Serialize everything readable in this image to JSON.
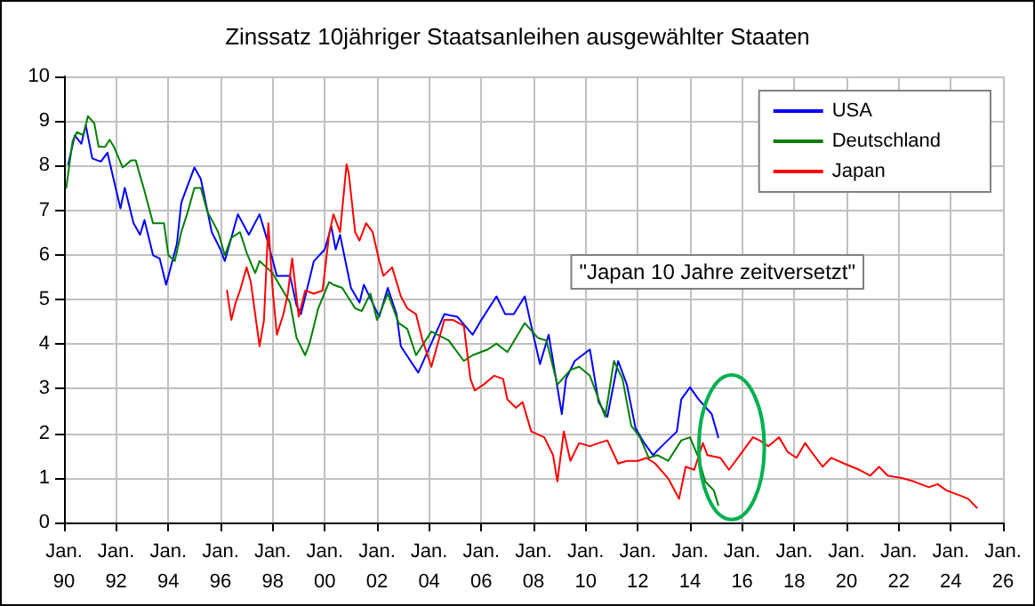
{
  "chart_data": {
    "type": "line",
    "title": "Zinssatz 10jähriger Staatsanleihen ausgewählter Staaten",
    "xlim": [
      "1990-01",
      "2026-01"
    ],
    "xticks": [
      {
        "value": "1990-01",
        "label": "Jan.\n90"
      },
      {
        "value": "1992-01",
        "label": "Jan.\n92"
      },
      {
        "value": "1994-01",
        "label": "Jan.\n94"
      },
      {
        "value": "1996-01",
        "label": "Jan.\n96"
      },
      {
        "value": "1998-01",
        "label": "Jan.\n98"
      },
      {
        "value": "2000-01",
        "label": "Jan.\n00"
      },
      {
        "value": "2002-01",
        "label": "Jan.\n02"
      },
      {
        "value": "2004-01",
        "label": "Jan.\n04"
      },
      {
        "value": "2006-01",
        "label": "Jan.\n06"
      },
      {
        "value": "2008-01",
        "label": "Jan.\n08"
      },
      {
        "value": "2010-01",
        "label": "Jan.\n10"
      },
      {
        "value": "2012-01",
        "label": "Jan.\n12"
      },
      {
        "value": "2014-01",
        "label": "Jan.\n14"
      },
      {
        "value": "2016-01",
        "label": "Jan.\n16"
      },
      {
        "value": "2018-01",
        "label": "Jan.\n18"
      },
      {
        "value": "2020-01",
        "label": "Jan.\n20"
      },
      {
        "value": "2022-01",
        "label": "Jan.\n22"
      },
      {
        "value": "2024-01",
        "label": "Jan.\n24"
      },
      {
        "value": "2026-01",
        "label": "Jan.\n26"
      }
    ],
    "ylim": [
      0,
      10
    ],
    "yticks": [
      0,
      1,
      2,
      3,
      4,
      5,
      6,
      7,
      8,
      9,
      10
    ],
    "grid": true,
    "legend": "top right",
    "marker": "none",
    "line_style": "solid",
    "annotations": [
      "\"Japan 10 Jahre zeitversetzt\""
    ],
    "series": [
      {
        "name": "USA",
        "color": "#0000ff",
        "x": [
          "1990-03",
          "1990-06",
          "1990-09",
          "1990-11",
          "1991-02",
          "1991-06",
          "1991-09",
          "1992-03",
          "1992-05",
          "1992-09",
          "1992-12",
          "1993-02",
          "1993-06",
          "1993-09",
          "1993-12",
          "1994-05",
          "1994-07",
          "1995-01",
          "1995-04",
          "1995-09",
          "1996-01",
          "1996-03",
          "1996-09",
          "1997-02",
          "1997-07",
          "1997-11",
          "1998-03",
          "1998-09",
          "1998-12",
          "1999-02",
          "1999-08",
          "2000-01",
          "2000-04",
          "2000-06",
          "2000-08",
          "2001-01",
          "2001-05",
          "2001-07",
          "2002-02",
          "2002-06",
          "2002-10",
          "2002-12",
          "2003-08",
          "2004-08",
          "2005-02",
          "2005-09",
          "2006-01",
          "2006-08",
          "2006-12",
          "2007-04",
          "2007-09",
          "2007-12",
          "2008-04",
          "2008-08",
          "2009-02",
          "2009-04",
          "2009-08",
          "2010-03",
          "2010-07",
          "2010-11",
          "2011-04",
          "2011-08",
          "2011-12",
          "2012-04",
          "2012-08",
          "2012-12",
          "2013-07",
          "2013-09",
          "2014-01",
          "2014-05",
          "2014-11",
          "2015-02"
        ],
        "values": [
          8.03,
          8.68,
          8.49,
          8.91,
          8.16,
          8.09,
          8.29,
          7.04,
          7.5,
          6.71,
          6.45,
          6.78,
          5.99,
          5.92,
          5.33,
          6.25,
          7.17,
          7.96,
          7.7,
          6.51,
          6.12,
          5.86,
          6.91,
          6.45,
          6.91,
          6.25,
          5.53,
          5.53,
          4.87,
          4.67,
          5.86,
          6.12,
          6.64,
          6.12,
          6.45,
          5.26,
          4.93,
          5.33,
          4.61,
          5.26,
          4.67,
          3.95,
          3.36,
          4.67,
          4.61,
          4.21,
          4.54,
          5.07,
          4.67,
          4.67,
          5.07,
          4.41,
          3.55,
          4.21,
          2.43,
          3.22,
          3.62,
          3.88,
          2.7,
          2.37,
          3.62,
          3.09,
          2.11,
          1.78,
          1.51,
          1.71,
          2.04,
          2.76,
          3.03,
          2.76,
          2.43,
          1.91
        ]
      },
      {
        "name": "Deutschland",
        "color": "#008000",
        "x": [
          "1990-02",
          "1990-05",
          "1990-07",
          "1990-10",
          "1990-12",
          "1991-03",
          "1991-05",
          "1991-08",
          "1991-10",
          "1991-12",
          "1992-04",
          "1992-08",
          "1992-10",
          "1993-02",
          "1993-06",
          "1993-11",
          "1994-01",
          "1994-04",
          "1994-07",
          "1994-10",
          "1995-01",
          "1995-04",
          "1995-07",
          "1995-12",
          "1996-03",
          "1996-06",
          "1996-10",
          "1997-01",
          "1997-05",
          "1997-07",
          "1998-01",
          "1998-05",
          "1998-09",
          "1998-12",
          "1999-04",
          "1999-06",
          "1999-10",
          "2000-03",
          "2000-05",
          "2000-09",
          "2001-03",
          "2001-06",
          "2001-10",
          "2002-01",
          "2002-06",
          "2002-11",
          "2003-03",
          "2003-07",
          "2004-02",
          "2004-10",
          "2005-05",
          "2005-09",
          "2006-04",
          "2006-08",
          "2007-01",
          "2007-09",
          "2008-03",
          "2008-07",
          "2008-12",
          "2009-06",
          "2009-10",
          "2010-03",
          "2010-10",
          "2011-02",
          "2011-06",
          "2011-10",
          "2012-02",
          "2012-06",
          "2012-10",
          "2013-03",
          "2013-09",
          "2014-01",
          "2014-05",
          "2014-08",
          "2014-12",
          "2015-02"
        ],
        "values": [
          7.5,
          8.55,
          8.75,
          8.68,
          9.11,
          8.95,
          8.42,
          8.42,
          8.58,
          8.42,
          7.96,
          8.12,
          8.12,
          7.43,
          6.71,
          6.71,
          5.99,
          5.86,
          6.51,
          6.97,
          7.5,
          7.5,
          6.97,
          6.51,
          5.99,
          6.38,
          6.51,
          6.05,
          5.59,
          5.86,
          5.59,
          5.26,
          4.93,
          4.14,
          3.75,
          4.01,
          4.8,
          5.39,
          5.33,
          5.26,
          4.8,
          4.74,
          5.13,
          4.54,
          5.13,
          4.47,
          4.34,
          3.75,
          4.28,
          4.08,
          3.62,
          3.75,
          3.88,
          4.01,
          3.82,
          4.47,
          4.14,
          4.08,
          3.09,
          3.42,
          3.49,
          3.29,
          2.37,
          3.62,
          3.22,
          2.17,
          1.91,
          1.45,
          1.51,
          1.38,
          1.84,
          1.91,
          1.45,
          0.92,
          0.72,
          0.39
        ]
      },
      {
        "name": "Japan",
        "color": "#ff0000",
        "x": [
          "1996-04",
          "1996-06",
          "1996-08",
          "1996-10",
          "1997-01",
          "1997-03",
          "1997-05",
          "1997-07",
          "1997-09",
          "1997-11",
          "1998-01",
          "1998-03",
          "1998-06",
          "1998-08",
          "1998-10",
          "1999-01",
          "1999-04",
          "1999-08",
          "1999-12",
          "2000-03",
          "2000-05",
          "2000-08",
          "2000-11",
          "2000-12",
          "2001-03",
          "2001-05",
          "2001-08",
          "2001-11",
          "2002-02",
          "2002-04",
          "2002-08",
          "2002-12",
          "2003-03",
          "2003-07",
          "2003-10",
          "2004-02",
          "2004-08",
          "2004-12",
          "2005-05",
          "2005-08",
          "2005-10",
          "2006-02",
          "2006-07",
          "2006-11",
          "2007-01",
          "2007-05",
          "2007-08",
          "2007-12",
          "2008-06",
          "2008-10",
          "2008-12",
          "2009-03",
          "2009-06",
          "2009-10",
          "2010-03",
          "2010-07",
          "2010-11",
          "2011-04",
          "2011-08",
          "2012-01",
          "2012-05",
          "2012-09",
          "2013-03",
          "2013-08",
          "2013-11",
          "2014-03",
          "2014-07",
          "2014-09",
          "2015-03",
          "2015-07",
          "2015-12",
          "2016-06",
          "2016-09",
          "2017-01",
          "2017-06",
          "2017-10",
          "2018-02",
          "2018-06",
          "2018-10",
          "2019-02",
          "2019-06",
          "2019-12",
          "2020-07",
          "2020-12",
          "2021-04",
          "2021-08",
          "2022-03",
          "2022-08",
          "2023-03",
          "2023-07",
          "2023-11",
          "2024-06",
          "2024-09",
          "2025-01"
        ],
        "values": [
          5.2,
          4.54,
          4.93,
          5.2,
          5.72,
          5.39,
          4.67,
          3.95,
          4.54,
          6.71,
          5.2,
          4.21,
          4.67,
          5.13,
          5.92,
          4.61,
          5.2,
          5.13,
          5.2,
          6.45,
          6.91,
          6.51,
          8.03,
          7.83,
          6.51,
          6.32,
          6.71,
          6.51,
          5.86,
          5.53,
          5.72,
          5.07,
          4.8,
          4.67,
          4.08,
          3.49,
          4.54,
          4.54,
          4.41,
          3.22,
          2.96,
          3.09,
          3.29,
          3.22,
          2.76,
          2.57,
          2.7,
          2.04,
          1.91,
          1.51,
          0.92,
          2.04,
          1.38,
          1.78,
          1.71,
          1.78,
          1.84,
          1.32,
          1.38,
          1.38,
          1.45,
          1.32,
          0.99,
          0.53,
          1.25,
          1.18,
          1.78,
          1.51,
          1.45,
          1.18,
          1.51,
          1.91,
          1.84,
          1.71,
          1.91,
          1.58,
          1.45,
          1.78,
          1.51,
          1.25,
          1.45,
          1.32,
          1.18,
          1.05,
          1.25,
          1.05,
          0.99,
          0.92,
          0.79,
          0.86,
          0.72,
          0.59,
          0.53,
          0.33
        ]
      }
    ]
  }
}
